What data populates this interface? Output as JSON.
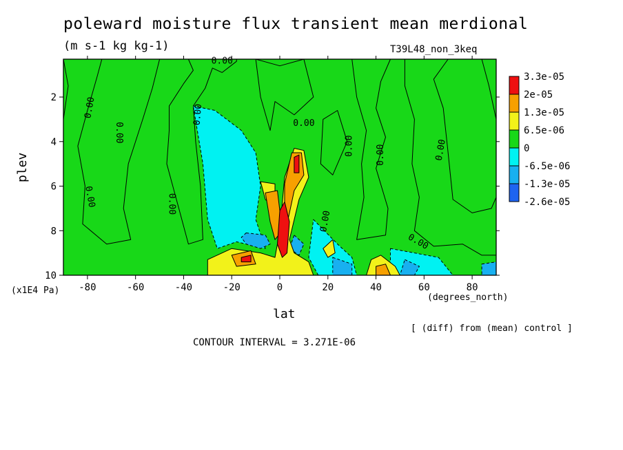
{
  "title": "poleward moisture flux transient mean merdional",
  "units": "(m s-1 kg kg-1)",
  "experiment": "T39L48_non_3keq",
  "y_scale_note": "(x1E4 Pa)",
  "x_units": "(degrees_north)",
  "diff_note": "[ (diff) from (mean) control ]",
  "contour_interval": "CONTOUR INTERVAL = 3.271E-06",
  "chart_data": {
    "type": "heatmap",
    "title": "poleward moisture flux transient mean merdional",
    "xlabel": "lat",
    "ylabel": "plev",
    "xlim": [
      -90,
      90
    ],
    "ylim": [
      10,
      0.3
    ],
    "x_ticks": [
      -80,
      -60,
      -40,
      -20,
      0,
      20,
      40,
      60,
      80
    ],
    "x_tick_labels": [
      "-80",
      "-60",
      "-40",
      "-20",
      "0",
      "20",
      "40",
      "60",
      "80"
    ],
    "y_ticks": [
      2,
      4,
      6,
      8,
      10
    ],
    "y_tick_labels": [
      "2",
      "4",
      "6",
      "8",
      "10"
    ],
    "legend": {
      "placement": "right",
      "labels": [
        "3.3e-05",
        "2e-05",
        "1.3e-05",
        "6.5e-06",
        "0",
        "-6.5e-06",
        "-1.3e-05",
        "-2.6e-05"
      ],
      "colors": [
        "#ee1010",
        "#f7a000",
        "#f2f21a",
        "#18d818",
        "#00f2f2",
        "#18b0f0",
        "#1e64f0"
      ]
    },
    "contour_labels": [
      {
        "text": "0.00",
        "x": -78,
        "y": 2.5,
        "rotate": -80
      },
      {
        "text": "0.00",
        "x": -68,
        "y": 3.6,
        "rotate": 90
      },
      {
        "text": "0.00",
        "x": -80,
        "y": 6.5,
        "rotate": 80
      },
      {
        "text": "0.00",
        "x": -46,
        "y": 6.8,
        "rotate": 90
      },
      {
        "text": "0.00",
        "x": -33,
        "y": 2.8,
        "rotate": -85
      },
      {
        "text": "0.00",
        "x": -24,
        "y": 0.5,
        "rotate": 0
      },
      {
        "text": "0.00",
        "x": 10,
        "y": 3.3,
        "rotate": 0
      },
      {
        "text": "0.00",
        "x": 30,
        "y": 4.2,
        "rotate": -90
      },
      {
        "text": "0.00",
        "x": 43,
        "y": 4.6,
        "rotate": -90
      },
      {
        "text": "0.00",
        "x": 68,
        "y": 4.4,
        "rotate": -80
      },
      {
        "text": "0.00",
        "x": 20,
        "y": 7.6,
        "rotate": -80
      },
      {
        "text": "0.00",
        "x": 57,
        "y": 8.6,
        "rotate": 30
      }
    ],
    "regions": [
      {
        "level": 0,
        "points": [
          [
            -90,
            0.3
          ],
          [
            -74,
            0.3
          ],
          [
            -76,
            1.1
          ],
          [
            -80,
            2.6
          ],
          [
            -84,
            4.2
          ],
          [
            -81,
            6
          ],
          [
            -82,
            7.7
          ],
          [
            -72,
            8.6
          ],
          [
            -62,
            8.4
          ],
          [
            -65,
            7
          ],
          [
            -63,
            5
          ],
          [
            -57,
            3
          ],
          [
            -53,
            1.6
          ],
          [
            -50,
            0.3
          ],
          [
            -90,
            0.3
          ]
        ]
      },
      {
        "level": 0,
        "points": [
          [
            -90,
            0.3
          ],
          [
            -88,
            1.5
          ],
          [
            -90,
            3
          ]
        ]
      },
      {
        "level": 0,
        "points": [
          [
            -50,
            0.3
          ],
          [
            -38,
            0.3
          ],
          [
            -36,
            0.8
          ],
          [
            -40,
            1.4
          ],
          [
            -46,
            2.4
          ],
          [
            -46,
            3.5
          ],
          [
            -47,
            5
          ],
          [
            -42,
            7
          ],
          [
            -38,
            8.6
          ],
          [
            -32,
            8.4
          ],
          [
            -33,
            6
          ],
          [
            -35,
            4
          ],
          [
            -36,
            2.4
          ],
          [
            -31,
            1.6
          ],
          [
            -28,
            0.7
          ],
          [
            -24,
            0.9
          ],
          [
            -18,
            0.4
          ],
          [
            -18,
            0.3
          ]
        ]
      },
      {
        "level": -1,
        "points": [
          [
            -36,
            2.4
          ],
          [
            -27,
            2.6
          ],
          [
            -16,
            3.5
          ],
          [
            -10,
            4.5
          ],
          [
            -8,
            6
          ],
          [
            -10,
            7.5
          ],
          [
            -6,
            8.8
          ],
          [
            -18,
            8.5
          ],
          [
            -26,
            8.8
          ],
          [
            -30,
            7.5
          ],
          [
            -32,
            5
          ]
        ]
      },
      {
        "level": 0,
        "points": [
          [
            -10,
            0.3
          ],
          [
            0,
            0.6
          ],
          [
            10,
            0.3
          ],
          [
            14,
            2
          ],
          [
            6,
            2.8
          ],
          [
            -2,
            2.2
          ],
          [
            -4,
            3.5
          ],
          [
            -8,
            2
          ]
        ]
      },
      {
        "level": 0,
        "points": [
          [
            18,
            3
          ],
          [
            24,
            2.6
          ],
          [
            28,
            4
          ],
          [
            22,
            5.5
          ],
          [
            17,
            5
          ]
        ]
      },
      {
        "level": 0,
        "points": [
          [
            30,
            0.3
          ],
          [
            46,
            0.3
          ],
          [
            42,
            1.3
          ],
          [
            40,
            2.5
          ],
          [
            44,
            3.8
          ],
          [
            40,
            5.2
          ],
          [
            45,
            7
          ],
          [
            44,
            8.2
          ],
          [
            32,
            8.4
          ],
          [
            35,
            6.5
          ],
          [
            34,
            5
          ],
          [
            36,
            3.5
          ],
          [
            32,
            2
          ]
        ]
      },
      {
        "level": 0,
        "points": [
          [
            52,
            0.3
          ],
          [
            70,
            0.3
          ],
          [
            64,
            1.2
          ],
          [
            68,
            2.5
          ],
          [
            70,
            4.5
          ],
          [
            72,
            6.6
          ],
          [
            80,
            7.2
          ],
          [
            88,
            7
          ],
          [
            90,
            6.5
          ],
          [
            90,
            9.1
          ],
          [
            84,
            9.1
          ],
          [
            76,
            8.6
          ],
          [
            64,
            8.7
          ],
          [
            56,
            8
          ],
          [
            58,
            6.5
          ],
          [
            55,
            5
          ],
          [
            56,
            3
          ],
          [
            52,
            1.5
          ]
        ]
      },
      {
        "level": 0,
        "points": [
          [
            84,
            0.3
          ],
          [
            90,
            0.3
          ],
          [
            90,
            3
          ],
          [
            87,
            1.5
          ]
        ]
      },
      {
        "level": -1,
        "points": [
          [
            14,
            7.5
          ],
          [
            24,
            8.6
          ],
          [
            30,
            9.2
          ],
          [
            32,
            10
          ],
          [
            16,
            10
          ],
          [
            12,
            9.2
          ]
        ]
      },
      {
        "level": -1,
        "points": [
          [
            46,
            8.8
          ],
          [
            66,
            9.2
          ],
          [
            72,
            10
          ],
          [
            46,
            10
          ]
        ]
      },
      {
        "level": -2,
        "points": [
          [
            -14,
            8.1
          ],
          [
            -6,
            8.2
          ],
          [
            -4,
            8.6
          ],
          [
            -8,
            8.8
          ],
          [
            -14,
            8.6
          ],
          [
            -16,
            8.3
          ]
        ]
      },
      {
        "level": -2,
        "points": [
          [
            6,
            8.2
          ],
          [
            10,
            8.6
          ],
          [
            8,
            9.1
          ],
          [
            4,
            8.8
          ]
        ]
      },
      {
        "level": -2,
        "points": [
          [
            22,
            9.2
          ],
          [
            30,
            9.5
          ],
          [
            30,
            10
          ],
          [
            22,
            10
          ]
        ]
      },
      {
        "level": -2,
        "points": [
          [
            52,
            9.3
          ],
          [
            58,
            9.6
          ],
          [
            56,
            10
          ],
          [
            50,
            10
          ]
        ]
      },
      {
        "level": -2,
        "points": [
          [
            84,
            9.5
          ],
          [
            90,
            9.4
          ],
          [
            90,
            10
          ],
          [
            84,
            10
          ]
        ]
      },
      {
        "level": 1,
        "points": [
          [
            -30,
            9.3
          ],
          [
            -20,
            8.8
          ],
          [
            -8,
            9
          ],
          [
            -2,
            9.2
          ],
          [
            0,
            8
          ],
          [
            2,
            5.6
          ],
          [
            6,
            4.3
          ],
          [
            10,
            4.4
          ],
          [
            12,
            5.6
          ],
          [
            8,
            6.6
          ],
          [
            4,
            8.4
          ],
          [
            6,
            9
          ],
          [
            12,
            9.4
          ],
          [
            14,
            10
          ],
          [
            -30,
            10
          ]
        ]
      },
      {
        "level": 1,
        "points": [
          [
            -8,
            5.8
          ],
          [
            -2,
            5.9
          ],
          [
            -2,
            7
          ],
          [
            -6,
            6.6
          ]
        ]
      },
      {
        "level": 1,
        "points": [
          [
            18,
            8.8
          ],
          [
            22,
            8.4
          ],
          [
            23,
            9
          ],
          [
            20,
            9.2
          ]
        ]
      },
      {
        "level": 1,
        "points": [
          [
            38,
            9.3
          ],
          [
            42,
            9.1
          ],
          [
            48,
            9.6
          ],
          [
            50,
            10
          ],
          [
            36,
            10
          ]
        ]
      },
      {
        "level": 2,
        "points": [
          [
            2,
            5.9
          ],
          [
            5,
            4.5
          ],
          [
            9,
            4.5
          ],
          [
            10,
            5.5
          ],
          [
            6,
            6.2
          ],
          [
            4,
            7.2
          ],
          [
            2,
            8.2
          ]
        ]
      },
      {
        "level": 2,
        "points": [
          [
            -6,
            6.3
          ],
          [
            -1,
            6.2
          ],
          [
            1,
            8
          ],
          [
            -2,
            8.4
          ],
          [
            -4,
            7.6
          ]
        ]
      },
      {
        "level": 2,
        "points": [
          [
            -20,
            9.1
          ],
          [
            -12,
            8.9
          ],
          [
            -10,
            9.5
          ],
          [
            -18,
            9.6
          ]
        ]
      },
      {
        "level": 2,
        "points": [
          [
            40,
            9.6
          ],
          [
            44,
            9.5
          ],
          [
            46,
            10
          ],
          [
            40,
            10
          ]
        ]
      },
      {
        "level": 3,
        "points": [
          [
            0,
            7.1
          ],
          [
            2,
            6.7
          ],
          [
            4,
            7.6
          ],
          [
            3,
            9
          ],
          [
            1,
            9.2
          ],
          [
            -1,
            8.6
          ]
        ]
      },
      {
        "level": 3,
        "points": [
          [
            6,
            4.7
          ],
          [
            8,
            4.6
          ],
          [
            8,
            5.4
          ],
          [
            6,
            5.4
          ]
        ]
      },
      {
        "level": 3,
        "points": [
          [
            -16,
            9.2
          ],
          [
            -12,
            9.1
          ],
          [
            -12,
            9.4
          ],
          [
            -16,
            9.4
          ]
        ]
      }
    ]
  }
}
